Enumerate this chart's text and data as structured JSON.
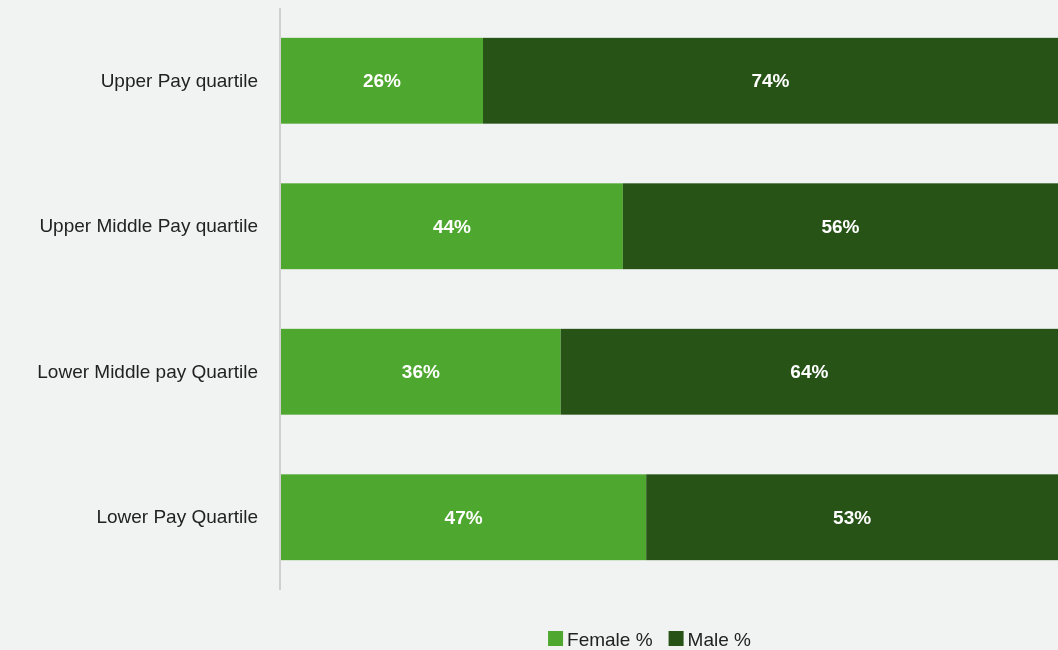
{
  "chart_data": {
    "type": "bar",
    "orientation": "horizontal",
    "stacked": true,
    "categories": [
      "Upper Pay quartile",
      "Upper Middle Pay quartile",
      "Lower Middle pay Quartile",
      "Lower Pay Quartile"
    ],
    "series": [
      {
        "name": "Female %",
        "color": "#4ea72e",
        "values": [
          26,
          44,
          36,
          47
        ],
        "value_labels": [
          "26%",
          "44%",
          "36%",
          "47%"
        ]
      },
      {
        "name": "Male %",
        "color": "#275317",
        "values": [
          74,
          56,
          64,
          53
        ],
        "value_labels": [
          "74%",
          "56%",
          "64%",
          "53%"
        ]
      }
    ],
    "xlim": [
      0,
      100
    ],
    "tick_labels": "y",
    "legend": "bottom"
  }
}
